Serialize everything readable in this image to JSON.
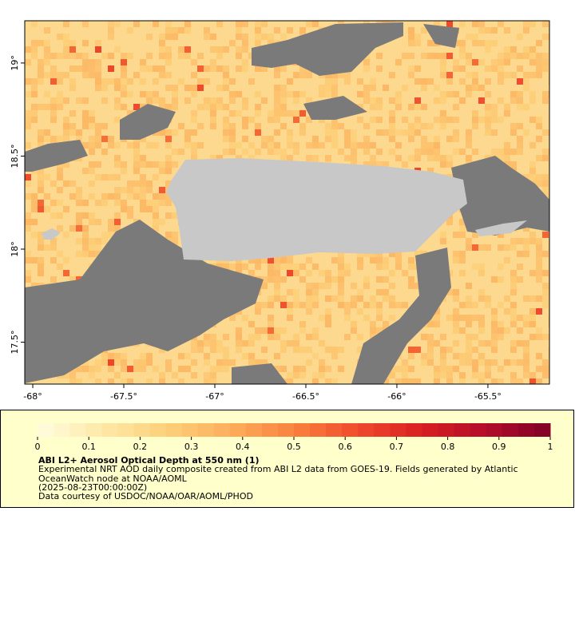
{
  "map": {
    "xlim": [
      -68.044,
      -65.162
    ],
    "ylim": [
      17.275,
      19.227
    ],
    "xticks": [
      {
        "value": -68,
        "label": "-68°"
      },
      {
        "value": -67.5,
        "label": "-67.5°"
      },
      {
        "value": -67,
        "label": "-67°"
      },
      {
        "value": -66.5,
        "label": "-66.5°"
      },
      {
        "value": -66,
        "label": "-66°"
      },
      {
        "value": -65.5,
        "label": "-65.5°"
      }
    ],
    "yticks": [
      {
        "value": 17.5,
        "label": "17.5°"
      },
      {
        "value": 18,
        "label": "18°"
      },
      {
        "value": 18.5,
        "label": "18.5°"
      },
      {
        "value": 19,
        "label": "19°"
      }
    ]
  },
  "colorbar": {
    "lim": [
      0,
      1
    ],
    "ticks": [
      0,
      0.1,
      0.2,
      0.3,
      0.4,
      0.5,
      0.6,
      0.7,
      0.8,
      0.9,
      1
    ],
    "palette": [
      "#fffde0",
      "#fee9a8",
      "#fdd07a",
      "#fcae5c",
      "#f9823e",
      "#f04a2c",
      "#d91f22",
      "#b30c2a",
      "#7f0026"
    ]
  },
  "legend": {
    "title": "ABI L2+ Aerosol Optical Depth at 550 nm (1)",
    "lines": [
      "Experimental NRT AOD daily composite created from ABI L2 data from GOES-19. Fields generated by Atlantic",
      "OceanWatch node at NOAA/AOML",
      "(2025-08-23T00:00:00Z)",
      "Data courtesy of USDOC/NOAA/OAR/AOML/PHOD"
    ]
  }
}
